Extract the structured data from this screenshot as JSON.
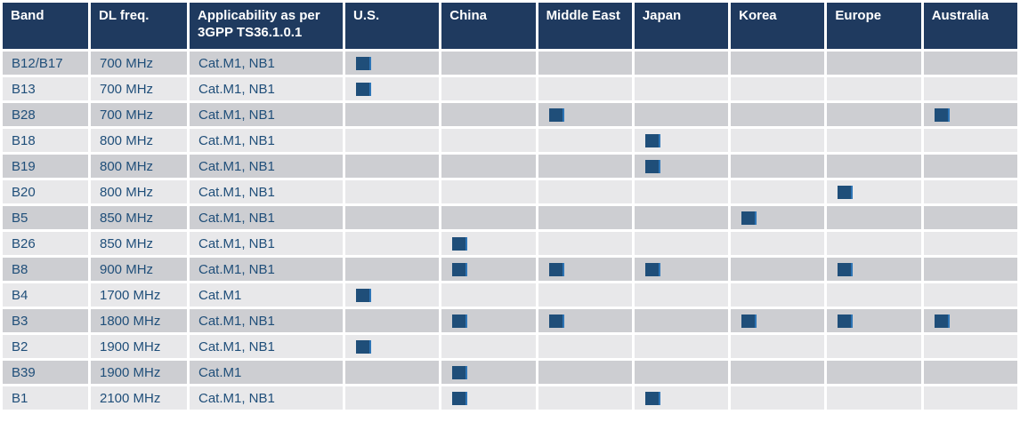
{
  "table": {
    "columns": [
      {
        "key": "band",
        "label": "Band"
      },
      {
        "key": "dl_freq",
        "label": "DL freq."
      },
      {
        "key": "applicability",
        "label": "Applicability as per 3GPP TS36.1.0.1"
      },
      {
        "key": "us",
        "label": "U.S."
      },
      {
        "key": "china",
        "label": "China"
      },
      {
        "key": "middle-east",
        "label": "Middle East"
      },
      {
        "key": "japan",
        "label": "Japan"
      },
      {
        "key": "korea",
        "label": "Korea"
      },
      {
        "key": "europe",
        "label": "Europe"
      },
      {
        "key": "australia",
        "label": "Australia"
      }
    ],
    "region_keys": [
      "us",
      "china",
      "middle-east",
      "japan",
      "korea",
      "europe",
      "australia"
    ],
    "rows": [
      {
        "band": "B12/B17",
        "dl_freq": "700 MHz",
        "applicability": "Cat.M1, NB1",
        "marks": [
          1,
          0,
          0,
          0,
          0,
          0,
          0
        ]
      },
      {
        "band": "B13",
        "dl_freq": "700 MHz",
        "applicability": "Cat.M1, NB1",
        "marks": [
          1,
          0,
          0,
          0,
          0,
          0,
          0
        ]
      },
      {
        "band": "B28",
        "dl_freq": "700 MHz",
        "applicability": "Cat.M1, NB1",
        "marks": [
          0,
          0,
          1,
          0,
          0,
          0,
          1
        ]
      },
      {
        "band": "B18",
        "dl_freq": "800 MHz",
        "applicability": "Cat.M1, NB1",
        "marks": [
          0,
          0,
          0,
          1,
          0,
          0,
          0
        ]
      },
      {
        "band": "B19",
        "dl_freq": "800 MHz",
        "applicability": "Cat.M1, NB1",
        "marks": [
          0,
          0,
          0,
          1,
          0,
          0,
          0
        ]
      },
      {
        "band": "B20",
        "dl_freq": "800 MHz",
        "applicability": "Cat.M1, NB1",
        "marks": [
          0,
          0,
          0,
          0,
          0,
          1,
          0
        ]
      },
      {
        "band": "B5",
        "dl_freq": "850 MHz",
        "applicability": "Cat.M1, NB1",
        "marks": [
          0,
          0,
          0,
          0,
          1,
          0,
          0
        ]
      },
      {
        "band": "B26",
        "dl_freq": "850 MHz",
        "applicability": "Cat.M1, NB1",
        "marks": [
          0,
          1,
          0,
          0,
          0,
          0,
          0
        ]
      },
      {
        "band": "B8",
        "dl_freq": "900 MHz",
        "applicability": "Cat.M1, NB1",
        "marks": [
          0,
          1,
          1,
          1,
          0,
          1,
          0
        ]
      },
      {
        "band": "B4",
        "dl_freq": "1700 MHz",
        "applicability": "Cat.M1",
        "marks": [
          1,
          0,
          0,
          0,
          0,
          0,
          0
        ]
      },
      {
        "band": "B3",
        "dl_freq": "1800 MHz",
        "applicability": "Cat.M1, NB1",
        "marks": [
          0,
          1,
          1,
          0,
          1,
          1,
          1
        ]
      },
      {
        "band": "B2",
        "dl_freq": "1900 MHz",
        "applicability": "Cat.M1, NB1",
        "marks": [
          1,
          0,
          0,
          0,
          0,
          0,
          0
        ]
      },
      {
        "band": "B39",
        "dl_freq": "1900 MHz",
        "applicability": "Cat.M1",
        "marks": [
          0,
          1,
          0,
          0,
          0,
          0,
          0
        ]
      },
      {
        "band": "B1",
        "dl_freq": "2100 MHz",
        "applicability": "Cat.M1, NB1",
        "marks": [
          0,
          1,
          0,
          1,
          0,
          0,
          0
        ]
      }
    ]
  },
  "marker": {
    "glyph": "filled-square",
    "meaning": "band applicable in region"
  },
  "colors": {
    "header_bg": "#1f3a5f",
    "row_odd": "#cdced2",
    "row_even": "#e8e8ea",
    "body_text": "#1f4e79",
    "square": "#1f4e79",
    "square_edge": "#2e75b6",
    "grid": "#ffffff"
  }
}
